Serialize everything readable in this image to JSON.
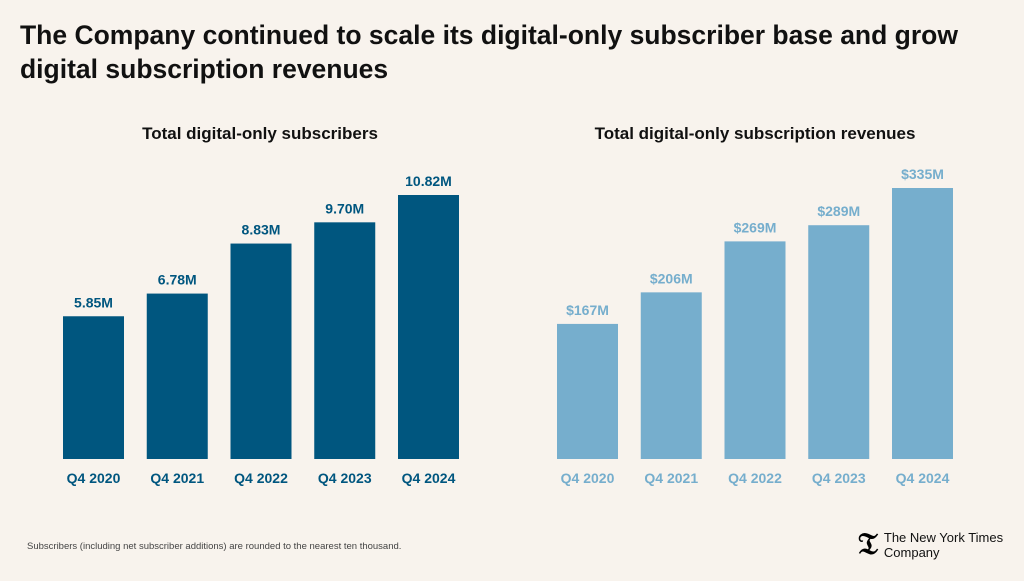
{
  "title": "The Company continued to scale its digital-only subscriber base and grow digital subscription revenues",
  "footnote": "Subscribers (including net subscriber additions) are rounded to the nearest ten thousand.",
  "logo": {
    "line1": "The New York Times",
    "line2": "Company",
    "mark": "T"
  },
  "chart_data": [
    {
      "type": "bar",
      "title": "Total digital-only subscribers",
      "categories": [
        "Q4 2020",
        "Q4 2021",
        "Q4 2022",
        "Q4 2023",
        "Q4 2024"
      ],
      "values": [
        5.85,
        6.78,
        8.83,
        9.7,
        10.82
      ],
      "labels": [
        "5.85M",
        "6.78M",
        "8.83M",
        "9.70M",
        "10.82M"
      ],
      "unit": "M",
      "color": "#00567f",
      "grid": false
    },
    {
      "type": "bar",
      "title": "Total digital-only subscription revenues",
      "categories": [
        "Q4 2020",
        "Q4 2021",
        "Q4 2022",
        "Q4 2023",
        "Q4 2024"
      ],
      "values": [
        167,
        206,
        269,
        289,
        335
      ],
      "labels": [
        "$167M",
        "$206M",
        "$269M",
        "$289M",
        "$335M"
      ],
      "unit": "$M",
      "color": "#76aecd",
      "grid": false
    }
  ]
}
